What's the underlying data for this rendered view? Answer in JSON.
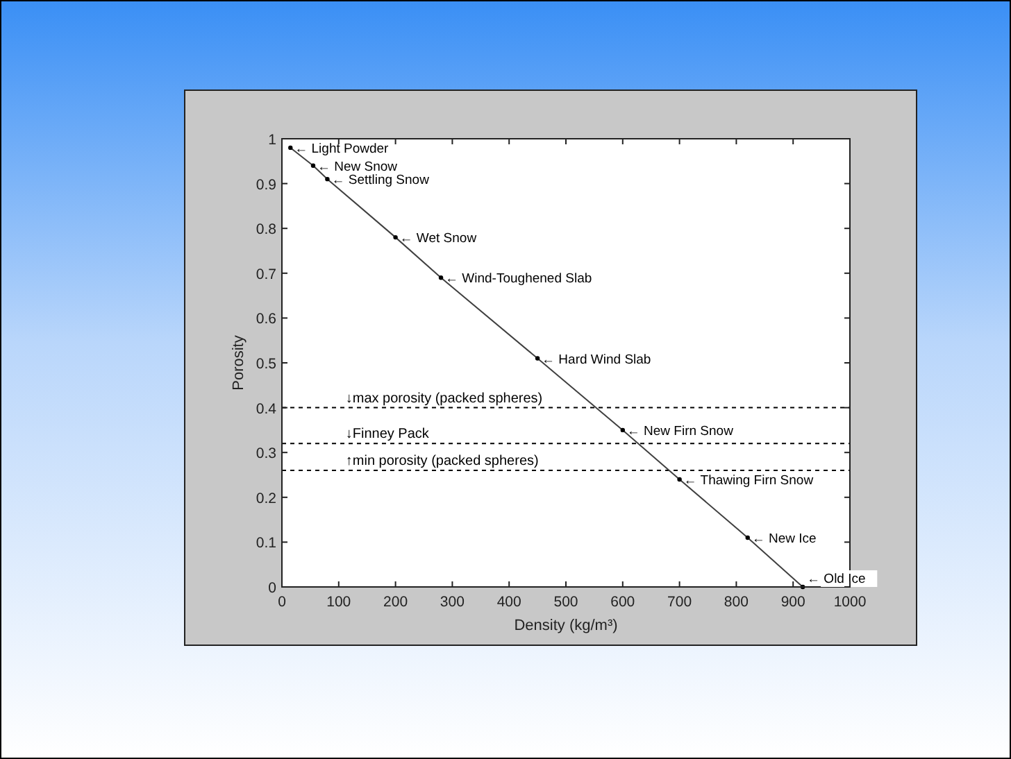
{
  "chart_data": {
    "type": "line",
    "xlabel": "Density (kg/m³)",
    "ylabel": "Porosity",
    "x": [
      15,
      55,
      80,
      200,
      280,
      450,
      600,
      700,
      820,
      917
    ],
    "series": [
      {
        "color": "#404040",
        "values": [
          0.98,
          0.94,
          0.91,
          0.78,
          0.69,
          0.51,
          0.35,
          0.24,
          0.11,
          0.0
        ]
      }
    ],
    "marker": "circle",
    "line_style": "solid",
    "grid": false,
    "xlim": [
      0,
      1000
    ],
    "xticks": [
      0,
      100,
      200,
      300,
      400,
      500,
      600,
      700,
      800,
      900,
      1000
    ],
    "ylim": [
      0,
      1
    ],
    "yticks": [
      0,
      0.1,
      0.2,
      0.3,
      0.4,
      0.5,
      0.6,
      0.7,
      0.8,
      0.9,
      1
    ],
    "ref_lines": [
      {
        "axis": "y",
        "value": 0.4,
        "label": "↓max porosity (packed spheres)",
        "color": "#000000",
        "line_style": "dashed"
      },
      {
        "axis": "y",
        "value": 0.32,
        "label": "↓Finney Pack",
        "color": "#000000",
        "line_style": "dashed"
      },
      {
        "axis": "y",
        "value": 0.26,
        "label": "↑min porosity (packed spheres)",
        "color": "#000000",
        "line_style": "dashed"
      }
    ],
    "annotations": [
      {
        "text": "← Light Powder",
        "x": 15,
        "y": 0.98
      },
      {
        "text": "← New Snow",
        "x": 55,
        "y": 0.94
      },
      {
        "text": "← Settling Snow",
        "x": 80,
        "y": 0.91
      },
      {
        "text": "← Wet Snow",
        "x": 200,
        "y": 0.78
      },
      {
        "text": "← Wind-Toughened Slab",
        "x": 280,
        "y": 0.69
      },
      {
        "text": "← Hard Wind Slab",
        "x": 450,
        "y": 0.51
      },
      {
        "text": "← New Firn Snow",
        "x": 600,
        "y": 0.35
      },
      {
        "text": "← Thawing Firn Snow",
        "x": 700,
        "y": 0.24
      },
      {
        "text": "← New Ice",
        "x": 820,
        "y": 0.11
      },
      {
        "text": "← Old Ice",
        "x": 917,
        "y": 0.0
      }
    ]
  }
}
